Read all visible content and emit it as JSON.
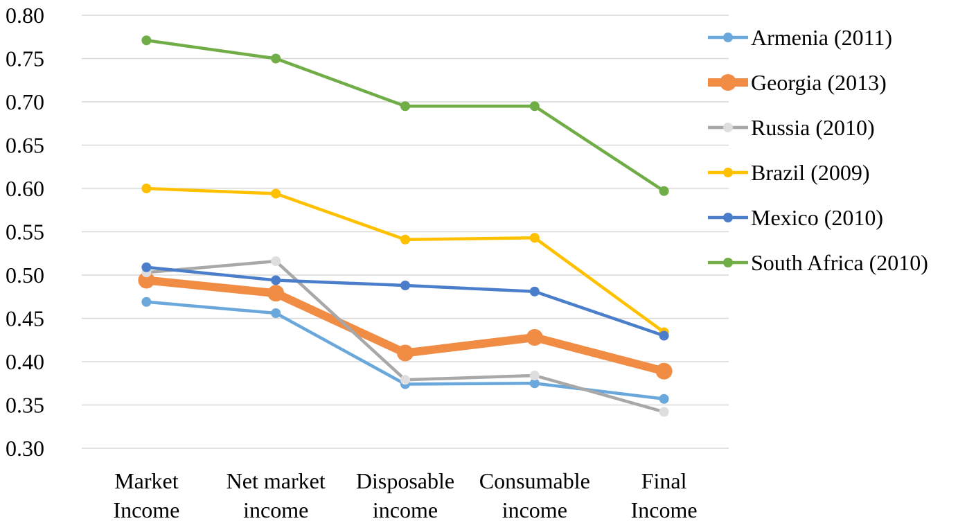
{
  "chart_data": {
    "type": "line",
    "title": "",
    "xlabel": "",
    "ylabel": "",
    "categories": [
      [
        "Market",
        "Income"
      ],
      [
        "Net market",
        "income"
      ],
      [
        "Disposable",
        "income"
      ],
      [
        "Consumable",
        "income"
      ],
      [
        "Final",
        "Income"
      ]
    ],
    "ylim": [
      0.3,
      0.8
    ],
    "yticks": [
      "0.30",
      "0.35",
      "0.40",
      "0.45",
      "0.50",
      "0.55",
      "0.60",
      "0.65",
      "0.70",
      "0.75",
      "0.80"
    ],
    "grid": true,
    "legend_position": "right",
    "series": [
      {
        "name": "Armenia (2011)",
        "color": "#6aa8dc",
        "marker_fill": "#6aa8dc",
        "thick": false,
        "values": [
          0.469,
          0.456,
          0.374,
          0.375,
          0.357
        ]
      },
      {
        "name": "Georgia (2013)",
        "color": "#f08c44",
        "marker_fill": "#f08c44",
        "thick": true,
        "values": [
          0.494,
          0.479,
          0.41,
          0.428,
          0.389
        ]
      },
      {
        "name": "Russia (2010)",
        "color": "#a8a8a8",
        "marker_fill": "#dedede",
        "thick": false,
        "values": [
          0.503,
          0.516,
          0.379,
          0.384,
          0.342
        ]
      },
      {
        "name": "Brazil (2009)",
        "color": "#ffc000",
        "marker_fill": "#ffc000",
        "thick": false,
        "values": [
          0.6,
          0.594,
          0.541,
          0.543,
          0.434
        ]
      },
      {
        "name": "Mexico (2010)",
        "color": "#4a7ecb",
        "marker_fill": "#4a7ecb",
        "thick": false,
        "values": [
          0.509,
          0.494,
          0.488,
          0.481,
          0.43
        ]
      },
      {
        "name": "South Africa (2010)",
        "color": "#70ad47",
        "marker_fill": "#70ad47",
        "thick": false,
        "values": [
          0.771,
          0.75,
          0.695,
          0.695,
          0.597
        ]
      }
    ]
  }
}
